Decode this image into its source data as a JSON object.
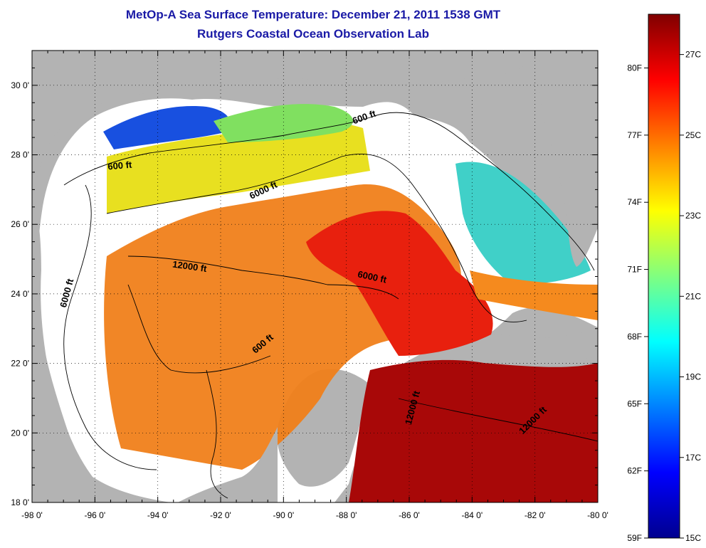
{
  "header": {
    "title": "MetOp-A Sea Surface Temperature:  December 21, 2011 1538 GMT",
    "subtitle": "Rutgers Coastal Ocean Observation Lab"
  },
  "map": {
    "lon_range": [
      -98,
      -80
    ],
    "lat_range": [
      18,
      31
    ],
    "x_tick_labels": [
      "-98 0'",
      "-96 0'",
      "-94 0'",
      "-92 0'",
      "-90 0'",
      "-88 0'",
      "-86 0'",
      "-84 0'",
      "-82 0'",
      "-80 0'"
    ],
    "y_tick_labels": [
      "18 0'",
      "20 0'",
      "22 0'",
      "24 0'",
      "26 0'",
      "28 0'",
      "30 0'"
    ],
    "land_color": "#b3b3b3",
    "cloud_color": "#ffffff",
    "grid": "dotted",
    "contour_labels": [
      {
        "text": "600 ft",
        "lon": -87.4,
        "lat": 29.0,
        "angle": -20
      },
      {
        "text": "600 ft",
        "lon": -95.2,
        "lat": 27.6,
        "angle": -5
      },
      {
        "text": "6000 ft",
        "lon": -90.6,
        "lat": 26.9,
        "angle": -25
      },
      {
        "text": "12000 ft",
        "lon": -93.0,
        "lat": 24.7,
        "angle": 8
      },
      {
        "text": "6000 ft",
        "lon": -96.8,
        "lat": 24.0,
        "angle": -75
      },
      {
        "text": "6000 ft",
        "lon": -87.2,
        "lat": 24.4,
        "angle": 12
      },
      {
        "text": "600 ft",
        "lon": -90.6,
        "lat": 22.5,
        "angle": -40
      },
      {
        "text": "12000 ft",
        "lon": -85.8,
        "lat": 20.7,
        "angle": -75
      },
      {
        "text": "12000 ft",
        "lon": -82.0,
        "lat": 20.3,
        "angle": -45
      }
    ]
  },
  "colorbar": {
    "colors": [
      "#00008f",
      "#0000ff",
      "#0080ff",
      "#00ffff",
      "#80ff80",
      "#ffff00",
      "#ff8000",
      "#ff0000",
      "#800000"
    ],
    "fahrenheit_labels": [
      "59F",
      "62F",
      "65F",
      "68F",
      "71F",
      "74F",
      "77F",
      "80F"
    ],
    "celsius_labels": [
      "15C",
      "17C",
      "19C",
      "21C",
      "23C",
      "25C",
      "27C"
    ]
  }
}
